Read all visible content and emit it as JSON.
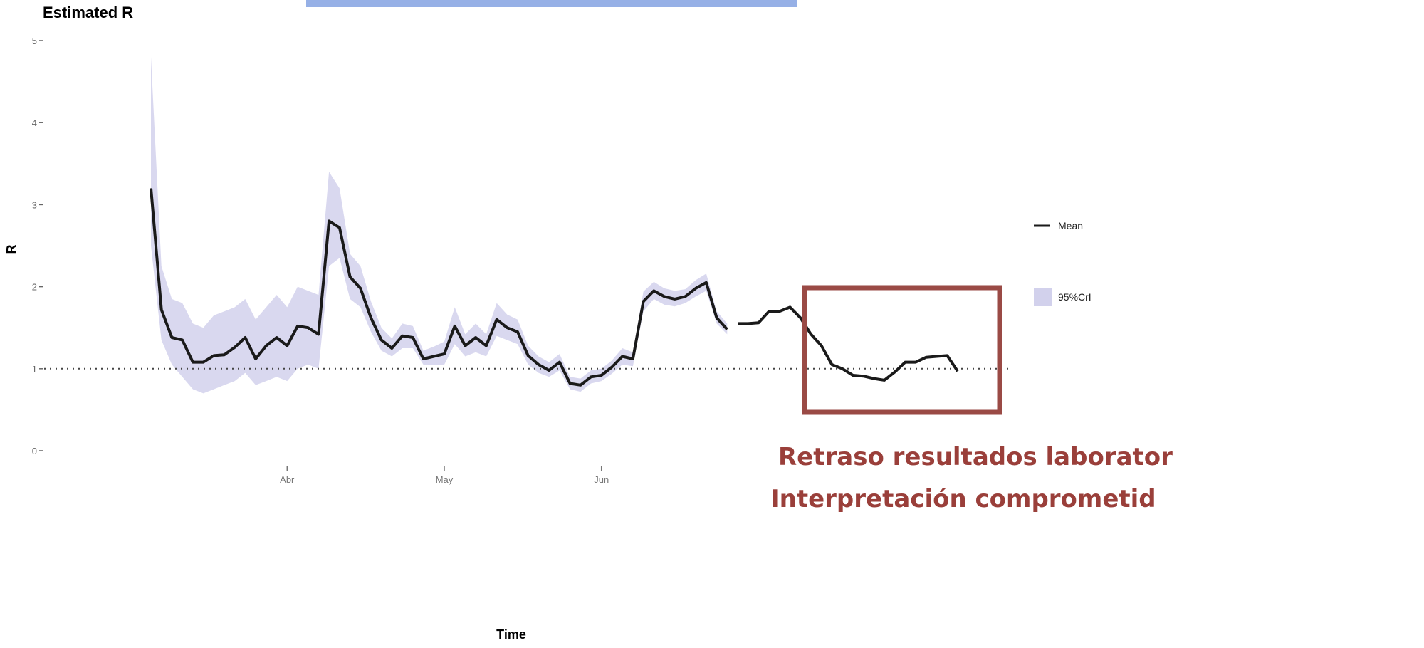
{
  "chart_data": {
    "type": "line",
    "title": "Estimated R",
    "xlabel": "Time",
    "ylabel": "R",
    "ylim": [
      0,
      5
    ],
    "x_range": [
      0,
      100
    ],
    "x_ticks": [
      {
        "x": 26,
        "label": "Abr"
      },
      {
        "x": 56,
        "label": "May"
      },
      {
        "x": 86,
        "label": "Jun"
      }
    ],
    "y_ticks": [
      0,
      1,
      2,
      3,
      4,
      5
    ],
    "reference_line": {
      "y": 1,
      "style": "dotted"
    },
    "legend": {
      "position": "right",
      "entries": [
        "Mean",
        "95%CrI"
      ]
    },
    "grid": false,
    "series": [
      {
        "name": "Mean",
        "color": "#1a1a1a",
        "x": [
          0,
          2,
          4,
          6,
          8,
          10,
          12,
          14,
          16,
          18,
          20,
          22,
          24,
          26,
          28,
          30,
          32,
          34,
          36,
          38,
          40,
          42,
          44,
          46,
          48,
          50,
          52,
          54,
          56,
          58,
          60,
          62,
          64,
          66,
          68,
          70,
          72,
          74,
          76,
          78,
          80,
          82,
          84,
          86,
          88,
          90,
          92,
          94,
          96,
          98,
          100,
          102,
          104,
          106,
          108,
          110
        ],
        "y": [
          3.2,
          1.72,
          1.38,
          1.35,
          1.08,
          1.08,
          1.16,
          1.17,
          1.26,
          1.38,
          1.12,
          1.28,
          1.38,
          1.28,
          1.52,
          1.5,
          1.42,
          2.8,
          2.72,
          2.12,
          1.98,
          1.62,
          1.35,
          1.25,
          1.4,
          1.38,
          1.12,
          1.15,
          1.18,
          1.52,
          1.28,
          1.38,
          1.28,
          1.6,
          1.5,
          1.45,
          1.16,
          1.05,
          0.98,
          1.08,
          0.82,
          0.8,
          0.9,
          0.92,
          1.02,
          1.15,
          1.12,
          1.82,
          1.95,
          1.88,
          1.85,
          1.88,
          1.98,
          2.05,
          1.62,
          1.48
        ],
        "band_95CrI": {
          "lower": [
            2.5,
            1.35,
            1.05,
            0.9,
            0.75,
            0.7,
            0.75,
            0.8,
            0.85,
            0.95,
            0.8,
            0.85,
            0.9,
            0.85,
            1.0,
            1.05,
            1.0,
            2.25,
            2.35,
            1.85,
            1.75,
            1.45,
            1.22,
            1.15,
            1.25,
            1.25,
            1.05,
            1.05,
            1.05,
            1.3,
            1.15,
            1.2,
            1.15,
            1.4,
            1.35,
            1.3,
            1.05,
            0.95,
            0.9,
            0.98,
            0.75,
            0.72,
            0.82,
            0.85,
            0.94,
            1.05,
            1.03,
            1.7,
            1.85,
            1.78,
            1.76,
            1.8,
            1.88,
            1.95,
            1.55,
            1.42
          ],
          "upper": [
            4.8,
            2.25,
            1.85,
            1.8,
            1.55,
            1.5,
            1.65,
            1.7,
            1.75,
            1.85,
            1.6,
            1.75,
            1.9,
            1.75,
            2.0,
            1.95,
            1.9,
            3.4,
            3.2,
            2.4,
            2.25,
            1.82,
            1.5,
            1.37,
            1.55,
            1.52,
            1.22,
            1.27,
            1.33,
            1.75,
            1.42,
            1.55,
            1.42,
            1.8,
            1.66,
            1.6,
            1.28,
            1.15,
            1.08,
            1.18,
            0.9,
            0.88,
            0.98,
            1.0,
            1.1,
            1.25,
            1.2,
            1.94,
            2.06,
            1.98,
            1.95,
            1.97,
            2.08,
            2.16,
            1.7,
            1.55
          ]
        }
      },
      {
        "name": "",
        "color": "#1a1a1a",
        "x": [
          112,
          114,
          116,
          118,
          120,
          122,
          124,
          126,
          128,
          130,
          132,
          134,
          136,
          138,
          140,
          142,
          144,
          146,
          148,
          150,
          152,
          154
        ],
        "y": [
          1.55,
          1.55,
          1.56,
          1.7,
          1.7,
          1.75,
          1.62,
          1.42,
          1.28,
          1.05,
          1.0,
          0.92,
          0.91,
          0.88,
          0.86,
          0.96,
          1.08,
          1.08,
          1.14,
          1.15,
          1.16,
          0.97
        ]
      }
    ]
  },
  "header": {
    "title_fragment": "…"
  },
  "legend": {
    "mean_label": "Mean",
    "band_label": "95%CrI"
  },
  "annotation": {
    "line1": "Retraso resultados laborator",
    "line2": "Interpretación comprometid",
    "box_color": "#9a4a45",
    "text_color": "#9a3f3a"
  }
}
